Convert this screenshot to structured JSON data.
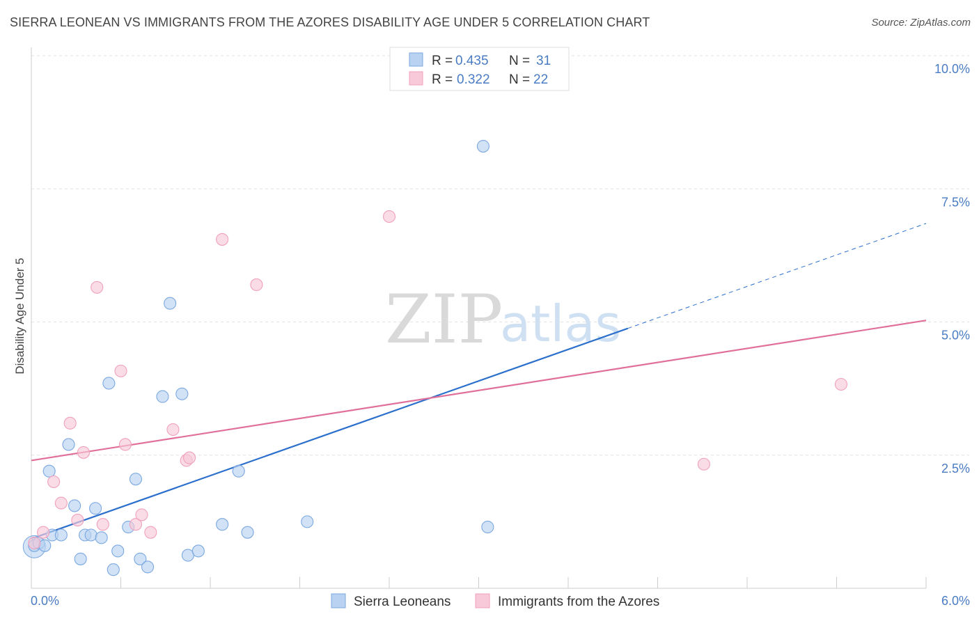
{
  "title": "SIERRA LEONEAN VS IMMIGRANTS FROM THE AZORES DISABILITY AGE UNDER 5 CORRELATION CHART",
  "source": "Source: ZipAtlas.com",
  "watermark": {
    "zip": "ZIP",
    "atlas": "atlas"
  },
  "chart_data": {
    "type": "scatter",
    "xlabel": "",
    "ylabel": "Disability Age Under 5",
    "xlim": [
      0,
      6.0
    ],
    "ylim": [
      0,
      10.0
    ],
    "x_tick_labels": [
      "0.0%",
      "6.0%"
    ],
    "y_ticks": [
      {
        "value": 2.5,
        "label": "2.5%"
      },
      {
        "value": 5.0,
        "label": "5.0%"
      },
      {
        "value": 7.5,
        "label": "7.5%"
      },
      {
        "value": 10.0,
        "label": "10.0%"
      }
    ],
    "grid": true,
    "legend_placement": "top-center",
    "series": [
      {
        "name": "Sierra Leoneans",
        "color": "#7aa8e0",
        "fill": "#b9d2f1",
        "line_color": "#2b6fcc",
        "R": "0.435",
        "N": "31",
        "trend": {
          "x0": 0.0,
          "y0": 0.93,
          "x1": 4.0,
          "y1": 4.88,
          "dashed_to_x": 6.0,
          "dashed_to_y": 6.85
        },
        "points": [
          [
            0.02,
            0.8
          ],
          [
            0.05,
            0.85
          ],
          [
            0.09,
            0.8
          ],
          [
            0.12,
            2.2
          ],
          [
            0.14,
            1.0
          ],
          [
            0.2,
            1.0
          ],
          [
            0.25,
            2.7
          ],
          [
            0.29,
            1.55
          ],
          [
            0.33,
            0.55
          ],
          [
            0.36,
            1.0
          ],
          [
            0.4,
            1.0
          ],
          [
            0.43,
            1.5
          ],
          [
            0.47,
            0.95
          ],
          [
            0.52,
            3.85
          ],
          [
            0.55,
            0.35
          ],
          [
            0.58,
            0.7
          ],
          [
            0.65,
            1.15
          ],
          [
            0.7,
            2.05
          ],
          [
            0.73,
            0.55
          ],
          [
            0.78,
            0.4
          ],
          [
            0.88,
            3.6
          ],
          [
            0.93,
            5.35
          ],
          [
            1.01,
            3.65
          ],
          [
            1.05,
            0.62
          ],
          [
            1.12,
            0.7
          ],
          [
            1.28,
            1.2
          ],
          [
            1.39,
            2.2
          ],
          [
            1.45,
            1.05
          ],
          [
            1.85,
            1.25
          ],
          [
            3.03,
            8.3
          ],
          [
            3.06,
            1.15
          ]
        ]
      },
      {
        "name": "Immigrants from the Azores",
        "color": "#f0a0bc",
        "fill": "#f8c9d8",
        "line_color": "#e0709a",
        "R": "0.322",
        "N": "22",
        "trend": {
          "x0": 0.0,
          "y0": 2.4,
          "x1": 6.0,
          "y1": 5.03
        },
        "points": [
          [
            0.02,
            0.85
          ],
          [
            0.08,
            1.05
          ],
          [
            0.15,
            2.0
          ],
          [
            0.2,
            1.6
          ],
          [
            0.26,
            3.1
          ],
          [
            0.31,
            1.28
          ],
          [
            0.35,
            2.55
          ],
          [
            0.44,
            5.65
          ],
          [
            0.48,
            1.2
          ],
          [
            0.6,
            4.08
          ],
          [
            0.63,
            2.7
          ],
          [
            0.7,
            1.2
          ],
          [
            0.74,
            1.38
          ],
          [
            0.8,
            1.05
          ],
          [
            0.95,
            2.98
          ],
          [
            1.04,
            2.4
          ],
          [
            1.06,
            2.45
          ],
          [
            1.28,
            6.55
          ],
          [
            1.51,
            5.7
          ],
          [
            2.4,
            6.98
          ],
          [
            4.51,
            2.33
          ],
          [
            5.43,
            3.83
          ]
        ]
      }
    ]
  },
  "legend": {
    "rows": [
      {
        "r_label": "R =",
        "r_value": "0.435",
        "n_label": "N =",
        "n_value": "31"
      },
      {
        "r_label": "R =",
        "r_value": "0.322",
        "n_label": "N =",
        "n_value": "22"
      }
    ]
  },
  "bottom_legend": [
    "Sierra Leoneans",
    "Immigrants from the Azores"
  ]
}
